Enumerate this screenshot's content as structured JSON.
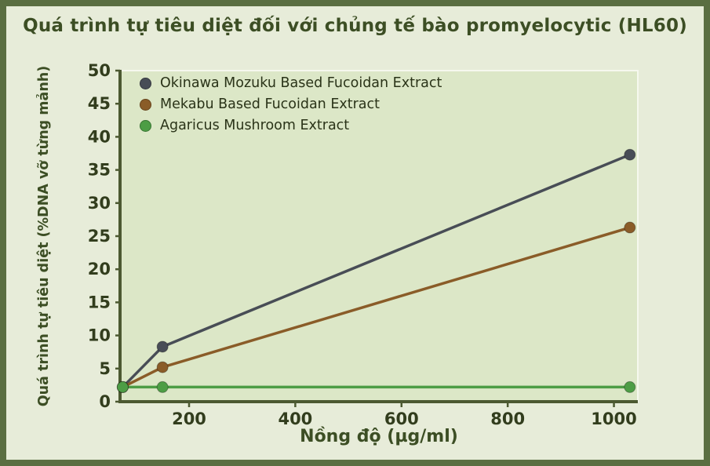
{
  "title": "Quá trình tự tiêu diệt đối với chủng tế bào promyelocytic (HL60)",
  "colors": {
    "frame_border": "#5a6e41",
    "page_background": "#e7ecd9",
    "plot_background": "#dce7c7",
    "plot_outline": "#f6f8ee",
    "axis": "#4c5931",
    "tick_text": "#323d1d",
    "title_text": "#3c4e24"
  },
  "chart_data": {
    "type": "line",
    "title": "Quá trình tự tiêu diệt đối với chủng tế bào promyelocytic (HL60)",
    "xlabel": "Nồng độ (µg/ml)",
    "ylabel": "Quá trình tự tiêu diệt (%DNA vỡ từng mảnh)",
    "xlim": [
      70,
      1045
    ],
    "ylim": [
      0,
      50
    ],
    "x_ticks": [
      200,
      400,
      600,
      800,
      1000
    ],
    "y_ticks": [
      0,
      5,
      10,
      15,
      20,
      25,
      30,
      35,
      40,
      45,
      50
    ],
    "grid": false,
    "legend_position": "top-left",
    "x": [
      75,
      150,
      1030
    ],
    "series": [
      {
        "name": "Okinawa Mozuku Based Fucoidan Extract",
        "color": "#484d56",
        "values": [
          2.2,
          8.3,
          37.3
        ]
      },
      {
        "name": "Mekabu Based Fucoidan Extract",
        "color": "#8a5c28",
        "values": [
          2.2,
          5.2,
          26.3
        ]
      },
      {
        "name": "Agaricus Mushroom Extract",
        "color": "#4d9d45",
        "values": [
          2.2,
          2.2,
          2.2
        ]
      }
    ]
  }
}
